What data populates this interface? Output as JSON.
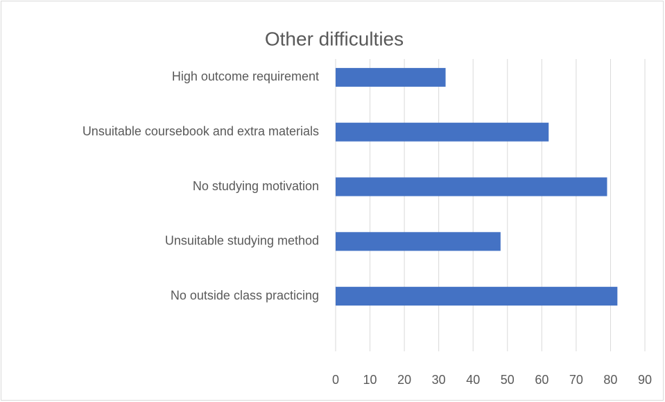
{
  "chart_data": {
    "type": "bar",
    "orientation": "horizontal",
    "title": "Other difficulties",
    "categories": [
      "High outcome requirement",
      "Unsuitable coursebook and extra materials",
      "No studying motivation",
      "Unsuitable studying method",
      "No outside class practicing"
    ],
    "values": [
      32,
      62,
      79,
      48,
      82
    ],
    "color": "#4472c4",
    "xlim": [
      0,
      90
    ],
    "xticks": [
      0,
      10,
      20,
      30,
      40,
      50,
      60,
      70,
      80,
      90
    ],
    "grid": true
  }
}
